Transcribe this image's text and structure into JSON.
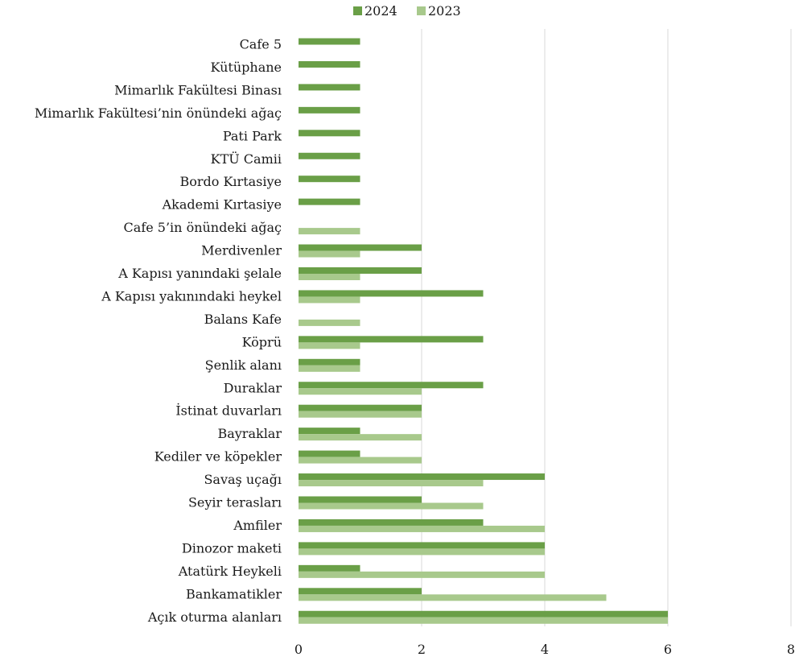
{
  "chart_data": {
    "type": "bar",
    "orientation": "horizontal",
    "title": "",
    "xlabel": "",
    "ylabel": "",
    "xlim": [
      0,
      8
    ],
    "x_ticks": [
      "0",
      "2",
      "4",
      "6",
      "8"
    ],
    "grid": "vertical",
    "legend_position": "top-center",
    "categories": [
      "Cafe 5",
      "Kütüphane",
      "Mimarlık Fakültesi Binası",
      "Mimarlık Fakültesi’nin önündeki ağaç",
      "Pati Park",
      "KTÜ Camii",
      "Bordo Kırtasiye",
      "Akademi Kırtasiye",
      "Cafe 5’in önündeki ağaç",
      "Merdivenler",
      "A Kapısı yanındaki şelale",
      "A Kapısı yakınındaki heykel",
      "Balans Kafe",
      "Köprü",
      "Şenlik alanı",
      "Duraklar",
      "İstinat duvarları",
      "Bayraklar",
      "Kediler ve köpekler",
      "Savaş uçağı",
      "Seyir terasları",
      "Amfiler",
      "Dinozor maketi",
      "Atatürk Heykeli",
      "Bankamatikler",
      "Açık oturma alanları"
    ],
    "series": [
      {
        "name": "2024",
        "color": "#6a9f47",
        "values": [
          1,
          1,
          1,
          1,
          1,
          1,
          1,
          1,
          0,
          2,
          2,
          3,
          0,
          3,
          1,
          3,
          2,
          1,
          1,
          4,
          2,
          3,
          4,
          1,
          2,
          6
        ]
      },
      {
        "name": "2023",
        "color": "#a8c98c",
        "values": [
          0,
          0,
          0,
          0,
          0,
          0,
          0,
          0,
          1,
          1,
          1,
          1,
          1,
          1,
          1,
          2,
          2,
          2,
          2,
          3,
          3,
          4,
          4,
          4,
          5,
          6
        ]
      }
    ]
  }
}
